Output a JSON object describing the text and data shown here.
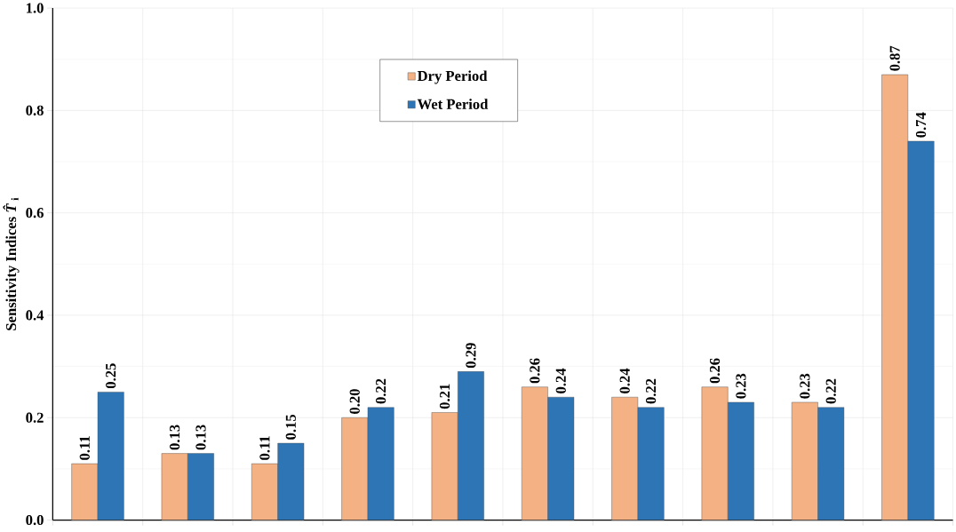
{
  "chart_data": {
    "type": "bar",
    "ylabel": "Sensitivity Indices *T̂*$_{i}$",
    "categories": [
      null,
      null,
      null,
      null,
      null,
      null,
      null,
      null,
      null,
      null
    ],
    "series": [
      {
        "name": "Dry Period",
        "color": "#f4b183",
        "values": [
          0.11,
          0.13,
          0.11,
          0.2,
          0.21,
          0.26,
          0.24,
          0.26,
          0.23,
          0.87
        ],
        "value_labels": [
          "0.11",
          "0.13",
          "0.11",
          "0.20",
          "0.21",
          "0.26",
          "0.24",
          "0.26",
          "0.23",
          "0.87"
        ]
      },
      {
        "name": "Wet Period",
        "color": "#2e75b6",
        "values": [
          0.25,
          0.13,
          0.15,
          0.22,
          0.29,
          0.24,
          0.22,
          0.23,
          0.22,
          0.74
        ],
        "value_labels": [
          "0.25",
          "0.13",
          "0.15",
          "0.22",
          "0.29",
          "0.24",
          "0.22",
          "0.23",
          "0.22",
          "0.74"
        ]
      }
    ],
    "ylim": [
      0,
      1.0
    ],
    "yticks": [
      {
        "value": 0,
        "label": "0.0"
      },
      0.2,
      0.4,
      0.6,
      0.8,
      {
        "value": 1.0,
        "label": "1.0"
      }
    ],
    "grid": true,
    "legend": "top"
  }
}
